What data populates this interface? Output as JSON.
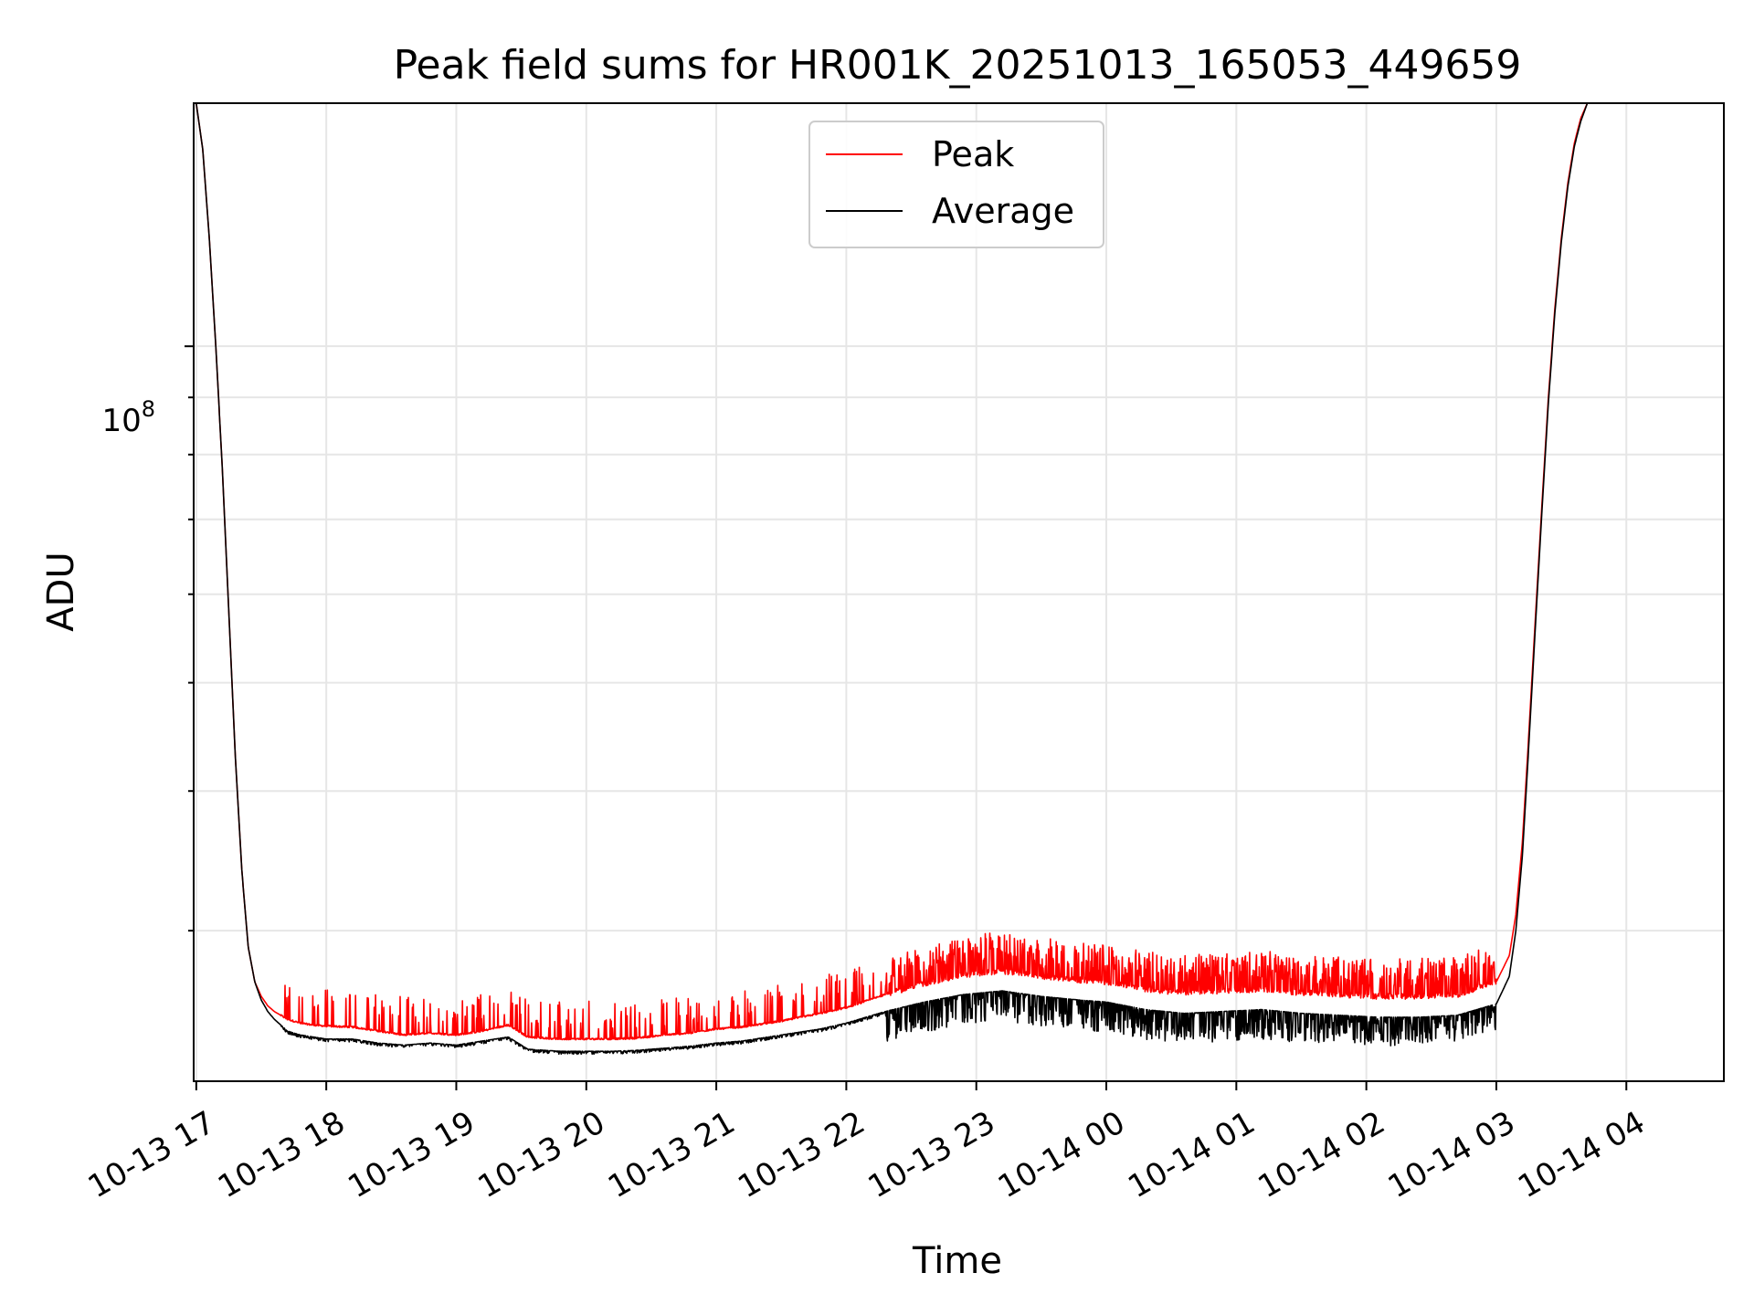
{
  "chart_data": {
    "type": "line",
    "title": "Peak field sums for HR001K_20251013_165053_449659",
    "xlabel": "Time",
    "ylabel": "ADU",
    "yscale": "log",
    "ylim": [
      22000000,
      165000000
    ],
    "xlim": [
      -0.02,
      11.75
    ],
    "grid": true,
    "legend_position": "top-center",
    "x_ticks": [
      0,
      1,
      2,
      3,
      4,
      5,
      6,
      7,
      8,
      9,
      10,
      11
    ],
    "x_tick_labels": [
      "10-13 17",
      "10-13 18",
      "10-13 19",
      "10-13 20",
      "10-13 21",
      "10-13 22",
      "10-13 23",
      "10-14 00",
      "10-14 01",
      "10-14 02",
      "10-14 03",
      "10-14 04"
    ],
    "y_major_tick_label": {
      "base": "10",
      "exponent": "8"
    },
    "y_major_tick_value": 100000000,
    "y_minor_ticks": [
      30000000,
      40000000,
      50000000,
      60000000,
      70000000,
      80000000,
      90000000,
      200000000
    ],
    "colors": {
      "peak": "#ff0000",
      "average": "#000000",
      "grid": "#e6e6e6"
    },
    "series": [
      {
        "name": "Peak",
        "color": "#ff0000",
        "x": [
          0,
          0.05,
          0.1,
          0.15,
          0.2,
          0.25,
          0.3,
          0.35,
          0.4,
          0.45,
          0.5,
          0.55,
          0.6,
          0.65,
          0.7,
          0.8,
          0.9,
          1.0,
          1.2,
          1.4,
          1.6,
          1.8,
          2.0,
          2.2,
          2.4,
          2.5,
          2.55,
          2.8,
          3.0,
          3.2,
          3.4,
          3.6,
          3.8,
          4.0,
          4.2,
          4.3,
          4.5,
          4.8,
          5.0,
          5.3,
          5.6,
          5.9,
          6.2,
          6.5,
          6.8,
          7.0,
          7.3,
          7.6,
          7.9,
          8.2,
          8.5,
          8.8,
          9.1,
          9.4,
          9.7,
          10.0,
          10.1,
          10.15,
          10.2,
          10.25,
          10.3,
          10.35,
          10.4,
          10.45,
          10.5,
          10.55,
          10.6,
          10.65,
          10.7,
          10.72
        ],
        "y": [
          165000000,
          150000000,
          125000000,
          100000000,
          78000000,
          58000000,
          43000000,
          34000000,
          29000000,
          27000000,
          26200000,
          25700000,
          25400000,
          25200000,
          25000000,
          24800000,
          24700000,
          24650000,
          24600000,
          24400000,
          24200000,
          24300000,
          24200000,
          24400000,
          24700000,
          24300000,
          24100000,
          24000000,
          24000000,
          24000000,
          24050000,
          24200000,
          24300000,
          24500000,
          24600000,
          24700000,
          24900000,
          25300000,
          25600000,
          26300000,
          26900000,
          27400000,
          27600000,
          27300000,
          27100000,
          27000000,
          26600000,
          26400000,
          26500000,
          26600000,
          26400000,
          26300000,
          26200000,
          26200000,
          26300000,
          27000000,
          28500000,
          31000000,
          36000000,
          45000000,
          57000000,
          72000000,
          90000000,
          108000000,
          125000000,
          140000000,
          152000000,
          160000000,
          165000000,
          165000000
        ]
      },
      {
        "name": "Average",
        "color": "#000000",
        "x": [
          0,
          0.05,
          0.1,
          0.15,
          0.2,
          0.25,
          0.3,
          0.35,
          0.4,
          0.45,
          0.5,
          0.55,
          0.6,
          0.65,
          0.7,
          0.8,
          0.9,
          1.0,
          1.2,
          1.4,
          1.6,
          1.8,
          2.0,
          2.2,
          2.4,
          2.5,
          2.55,
          2.8,
          3.0,
          3.2,
          3.4,
          3.6,
          3.8,
          4.0,
          4.2,
          4.3,
          4.5,
          4.8,
          5.0,
          5.3,
          5.6,
          5.9,
          6.2,
          6.5,
          6.8,
          7.0,
          7.3,
          7.6,
          7.9,
          8.2,
          8.5,
          8.8,
          9.1,
          9.4,
          9.7,
          10.0,
          10.1,
          10.15,
          10.2,
          10.25,
          10.3,
          10.35,
          10.4,
          10.45,
          10.5,
          10.55,
          10.6,
          10.65,
          10.7,
          10.72
        ],
        "y": [
          165000000,
          150000000,
          125000000,
          100000000,
          78000000,
          58000000,
          43000000,
          34000000,
          29000000,
          27000000,
          26000000,
          25400000,
          25000000,
          24700000,
          24400000,
          24200000,
          24100000,
          24000000,
          24000000,
          23800000,
          23700000,
          23800000,
          23700000,
          23900000,
          24100000,
          23700000,
          23500000,
          23400000,
          23400000,
          23400000,
          23450000,
          23550000,
          23650000,
          23800000,
          23900000,
          24000000,
          24200000,
          24500000,
          24800000,
          25400000,
          25900000,
          26300000,
          26500000,
          26200000,
          26000000,
          25900000,
          25500000,
          25300000,
          25400000,
          25500000,
          25300000,
          25200000,
          25100000,
          25100000,
          25200000,
          25800000,
          27300000,
          30000000,
          35000000,
          44000000,
          56000000,
          71000000,
          89000000,
          107000000,
          124000000,
          139000000,
          151000000,
          159000000,
          165000000,
          165000000
        ]
      }
    ]
  }
}
